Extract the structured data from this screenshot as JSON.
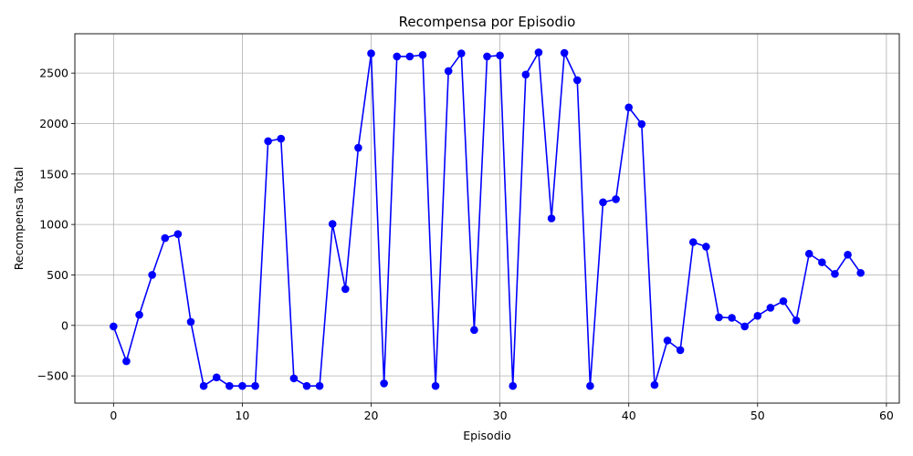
{
  "chart_data": {
    "type": "line",
    "title": "Recompensa por Episodio",
    "xlabel": "Episodio",
    "ylabel": "Recompensa Total",
    "xlim": [
      -3,
      61
    ],
    "ylim": [
      -770,
      2890
    ],
    "xticks": [
      0,
      10,
      20,
      30,
      40,
      50,
      60
    ],
    "yticks": [
      -500,
      0,
      500,
      1000,
      1500,
      2000,
      2500
    ],
    "grid": true,
    "color": "#0000ff",
    "marker": "circle",
    "x": [
      0,
      1,
      2,
      3,
      4,
      5,
      6,
      7,
      8,
      9,
      10,
      11,
      12,
      13,
      14,
      15,
      16,
      17,
      18,
      19,
      20,
      21,
      22,
      23,
      24,
      25,
      26,
      27,
      28,
      29,
      30,
      31,
      32,
      33,
      34,
      35,
      36,
      37,
      38,
      39,
      40,
      41,
      42,
      43,
      44,
      45,
      46,
      47,
      48,
      49,
      50,
      51,
      52,
      53,
      54,
      55,
      56,
      57,
      58
    ],
    "y": [
      -10,
      -355,
      105,
      500,
      865,
      905,
      35,
      -600,
      -515,
      -600,
      -600,
      -600,
      1825,
      1850,
      -525,
      -600,
      -600,
      1005,
      360,
      1760,
      2695,
      -575,
      2665,
      2665,
      2680,
      -600,
      2520,
      2695,
      -45,
      2665,
      2675,
      -600,
      2485,
      2705,
      1060,
      2700,
      2430,
      -600,
      1220,
      1250,
      2160,
      1995,
      -590,
      -150,
      -245,
      825,
      780,
      80,
      75,
      -10,
      95,
      175,
      240,
      50,
      710,
      625,
      510,
      700,
      520
    ]
  }
}
